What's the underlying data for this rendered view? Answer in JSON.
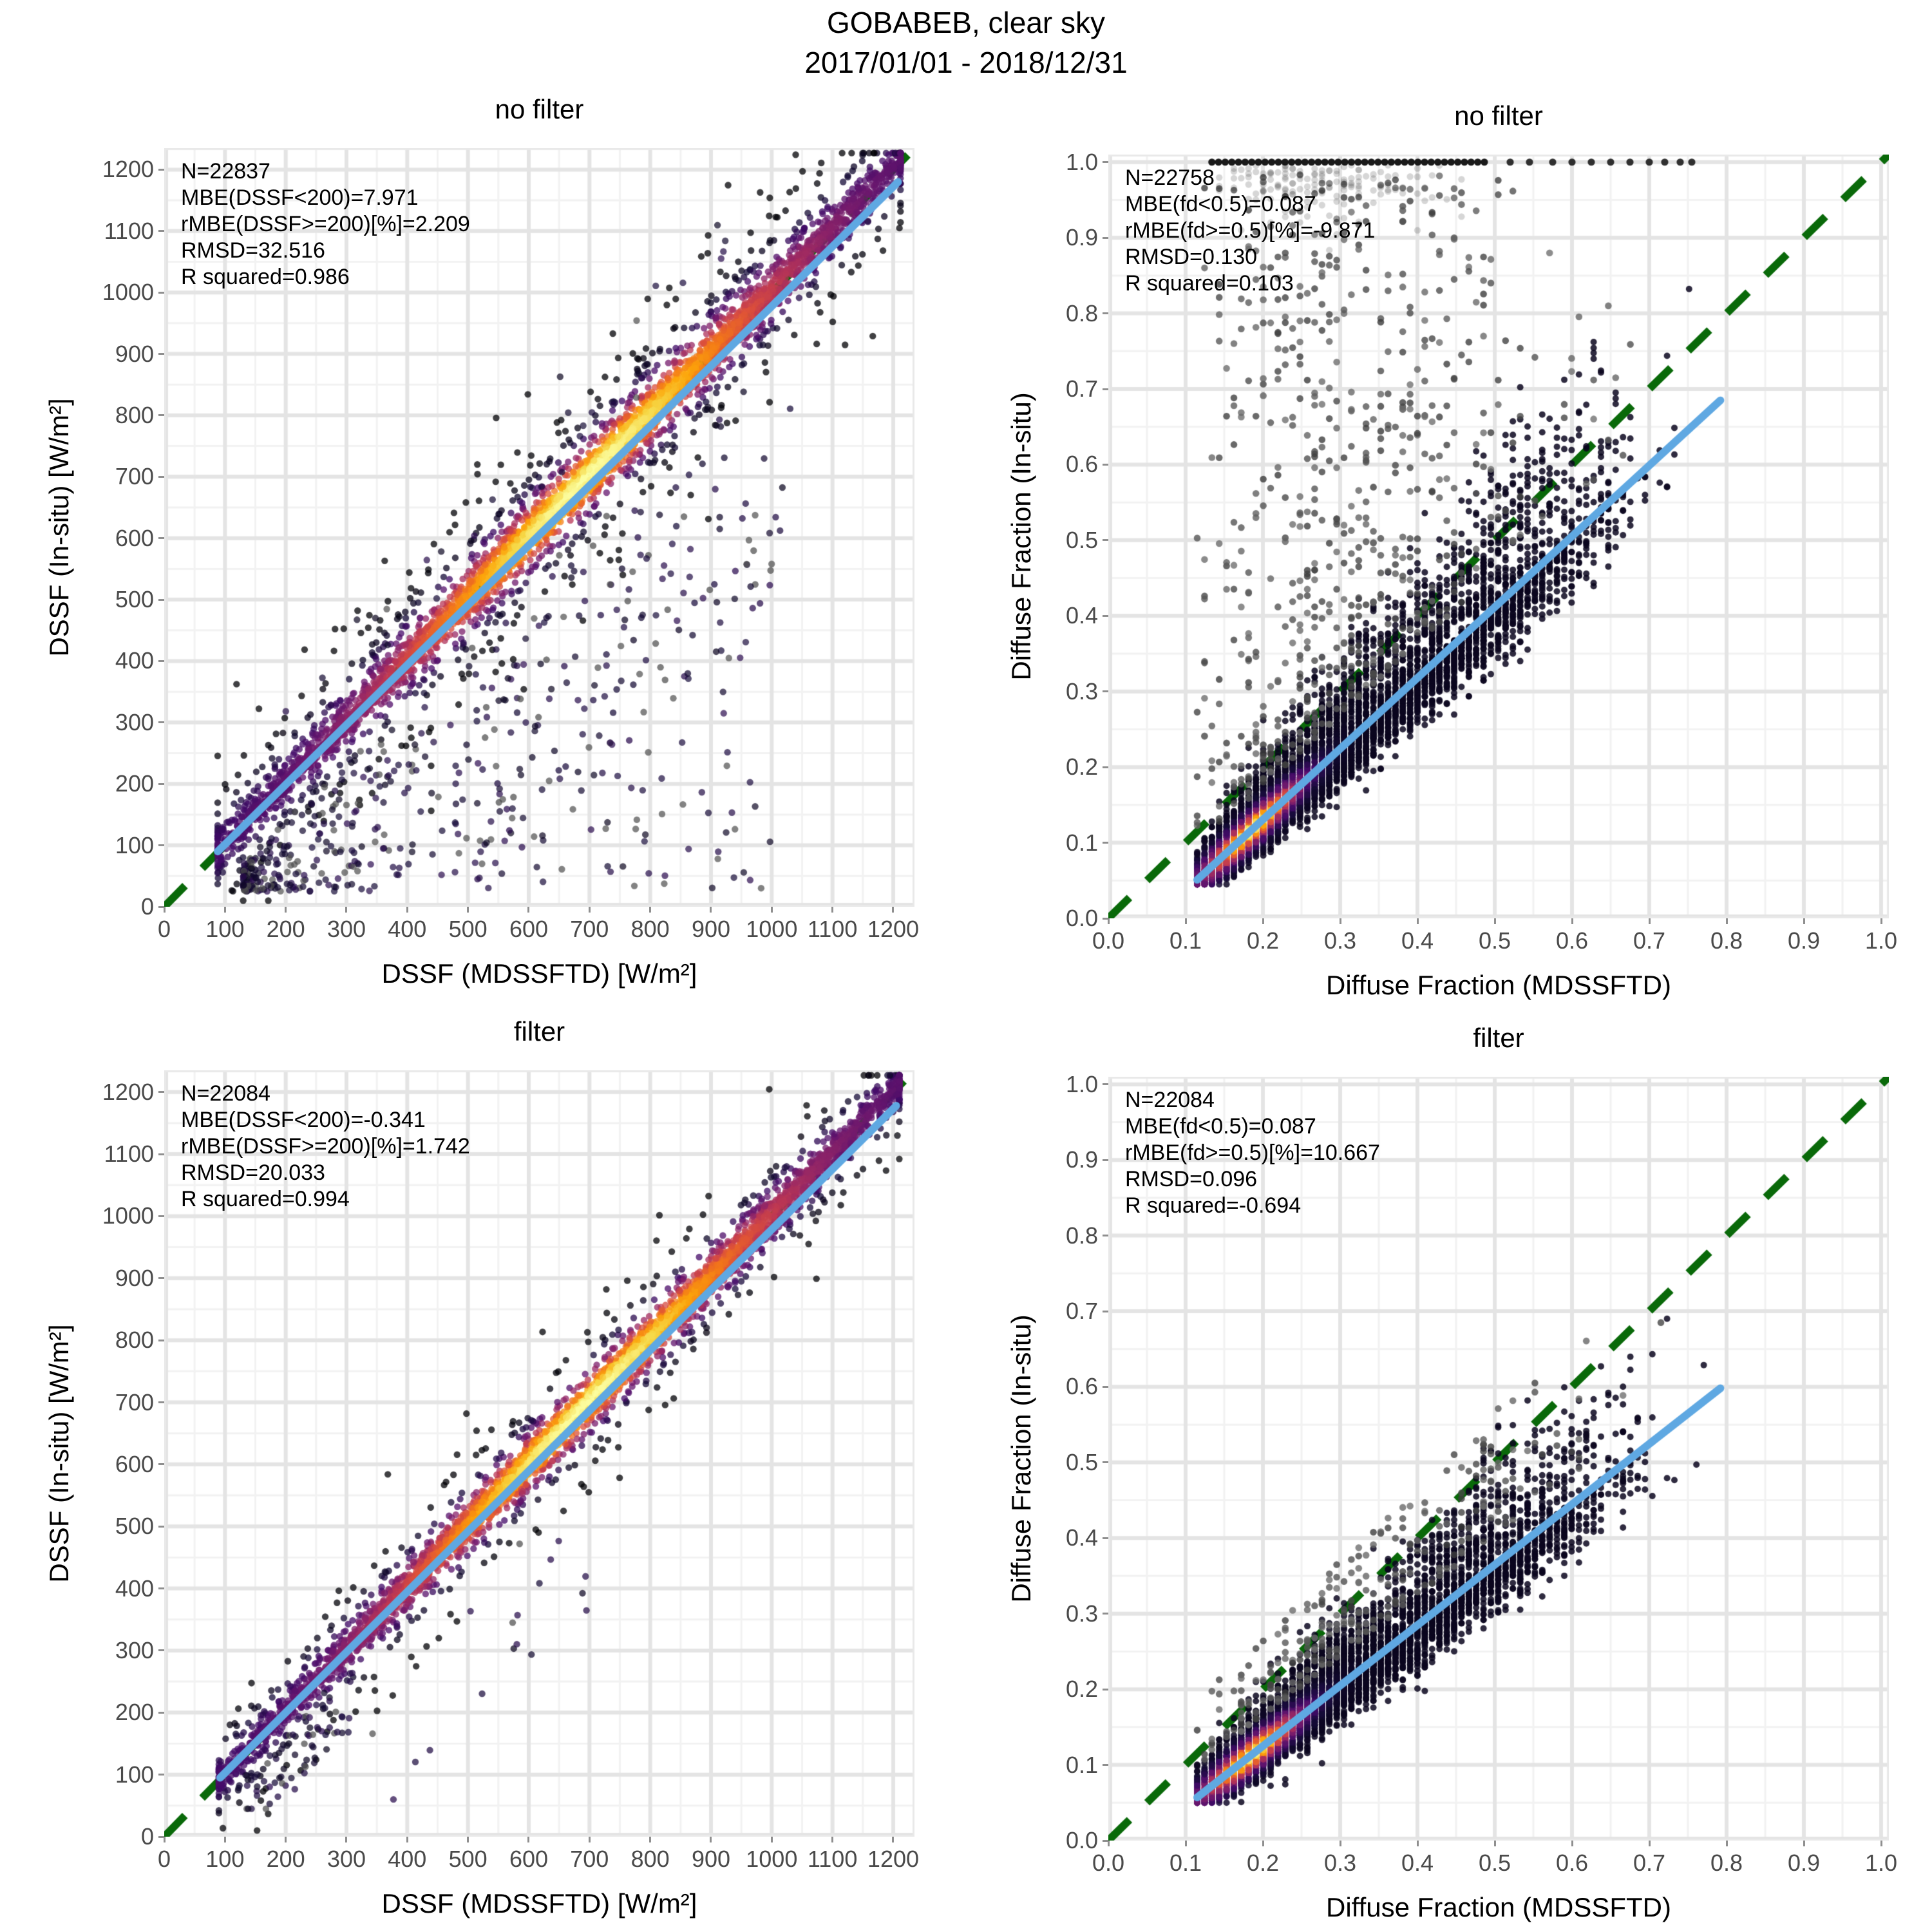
{
  "figure": {
    "title": "GOBABEB, clear sky",
    "subtitle": "2017/01/01 - 2018/12/31",
    "colors": {
      "identity_green": "#096909",
      "regression_blue": "#5fa8e2",
      "grid_major": "#e4e4e4",
      "grid_minor": "#f2f2f2",
      "panel_border": "#e9e9e9",
      "tick_label": "#4a4a4a",
      "tick_mark": "#8f8f8f",
      "outlier_gray": "#4e4e4e",
      "inferno": [
        "#000004",
        "#160b39",
        "#420a68",
        "#6a176e",
        "#932667",
        "#bc3754",
        "#dd513a",
        "#f37819",
        "#fca50a",
        "#f6d746",
        "#fcffa4"
      ]
    }
  },
  "chart_data": [
    {
      "id": "tl",
      "position": "top-left",
      "type": "scatter-density",
      "title": "no filter",
      "xlabel": "DSSF (MDSSFTD) [W/m²]",
      "ylabel": "DSSF (In-situ) [W/m²]",
      "xlim": [
        0,
        1235
      ],
      "ylim": [
        0,
        1235
      ],
      "xticks": [
        0,
        100,
        200,
        300,
        400,
        500,
        600,
        700,
        800,
        900,
        1000,
        1100,
        1200
      ],
      "yticks": [
        0,
        100,
        200,
        300,
        400,
        500,
        600,
        700,
        800,
        900,
        1000,
        1100,
        1200
      ],
      "xtick_labels": [
        "0",
        "100",
        "200",
        "300",
        "400",
        "500",
        "600",
        "700",
        "800",
        "900",
        "1000",
        "1100",
        "1200"
      ],
      "ytick_labels": [
        "0",
        "100",
        "200",
        "300",
        "400",
        "500",
        "600",
        "700",
        "800",
        "900",
        "1000",
        "1100",
        "1200"
      ],
      "minor_step": 50,
      "stats_lines": [
        "N=22837",
        "MBE(DSSF<200)=7.971",
        "rMBE(DSSF>=200)[%]=2.209",
        "RMSD=32.516",
        "R squared=0.986"
      ],
      "identity_line": {
        "x1": 0,
        "y1": 0,
        "x2": 1235,
        "y2": 1235,
        "dashed": true
      },
      "regression_line": {
        "x1": 88,
        "y1": 90,
        "x2": 1208,
        "y2": 1180
      },
      "density_cloud": {
        "kind": "diagonal",
        "n": 4300,
        "t_min": 88,
        "t_max": 1212,
        "t_peak": 690,
        "t_peak_sd": 270,
        "spread_sigmas": [
          15,
          40,
          95
        ],
        "spread_weights": [
          0.6,
          0.28,
          0.12
        ],
        "color_sigma": 52,
        "color_base": 0.2,
        "color_sd": 330,
        "bias": 4,
        "alpha": 0.75,
        "radius": 5.2,
        "seed": 11
      },
      "outlier_clusters": [
        {
          "kind": "below-triangle",
          "n": 430,
          "x_min": 130,
          "x_span": 870,
          "y_min": 25,
          "alpha": 0.7,
          "radius": 5.2,
          "seed": 12
        },
        {
          "kind": "below-band",
          "n": 110,
          "x_min": 480,
          "x_span": 560,
          "gap_min": 70,
          "gap_span": 430,
          "alpha": 0.72,
          "radius": 5.2,
          "seed": 13
        },
        {
          "kind": "above-band",
          "n": 26,
          "x_min": 200,
          "x_span": 760,
          "gap_min": 50,
          "gap_span": 170,
          "alpha": 0.7,
          "radius": 5.2,
          "seed": 14
        }
      ]
    },
    {
      "id": "tr",
      "position": "top-right",
      "type": "scatter-density",
      "title": "no filter",
      "xlabel": "Diffuse Fraction (MDSSFTD)",
      "ylabel": "Diffuse Fraction (In-situ)",
      "xlim": [
        0,
        1.01
      ],
      "ylim": [
        0,
        1.01
      ],
      "xticks": [
        0,
        0.1,
        0.2,
        0.3,
        0.4,
        0.5,
        0.6,
        0.7,
        0.8,
        0.9,
        1.0
      ],
      "yticks": [
        0,
        0.1,
        0.2,
        0.3,
        0.4,
        0.5,
        0.6,
        0.7,
        0.8,
        0.9,
        1.0
      ],
      "xtick_labels": [
        "0.0",
        "0.1",
        "0.2",
        "0.3",
        "0.4",
        "0.5",
        "0.6",
        "0.7",
        "0.8",
        "0.9",
        "1.0"
      ],
      "ytick_labels": [
        "0.0",
        "0.1",
        "0.2",
        "0.3",
        "0.4",
        "0.5",
        "0.6",
        "0.7",
        "0.8",
        "0.9",
        "1.0"
      ],
      "minor_step": 0.05,
      "stats_lines": [
        "N=22758",
        "MBE(fd<0.5)=0.087",
        "rMBE(fd>=0.5)[%]=-9.871",
        "RMSD=0.130",
        "R squared=0.103"
      ],
      "identity_line": {
        "x1": 0,
        "y1": 0,
        "x2": 1.01,
        "y2": 1.01,
        "dashed": true
      },
      "regression_line": {
        "x1": 0.115,
        "y1": 0.051,
        "x2": 0.792,
        "y2": 0.685
      },
      "density_cloud": {
        "kind": "columns",
        "n": 5400,
        "x_start": 0.115,
        "x_step": 0.0095,
        "n_cols": 70,
        "col_peak": 0.205,
        "col_sd": 0.115,
        "col_peak2": 0.44,
        "col_sd2": 0.15,
        "col_amp2": 0.38,
        "col_cut": 0.64,
        "col_cut_sd": 0.09,
        "reg": {
          "a": -0.0567,
          "b": 0.937
        },
        "p_below": 0.56,
        "sigma_below": [
          0.012,
          0.055
        ],
        "sigma_above": [
          0.02,
          0.165
        ],
        "core_x": 0.185,
        "core_xs": 0.062,
        "core_ys": 0.02,
        "y_min": 0.045,
        "y_max": 0.975,
        "alpha": 0.85,
        "radius": 5.0,
        "seed": 21
      },
      "upper_scatter": {
        "n": 640,
        "x_mu": 0.34,
        "x_sd": 0.16,
        "y_offset": 0.045,
        "y_top": 0.985,
        "exp": 1.55,
        "radius": 5.3,
        "seed": 22
      },
      "top_row": {
        "y": 1.0,
        "x_start": 0.134,
        "x_step": 0.0086,
        "n": 42,
        "sparse_x": [
          0.52,
          0.545,
          0.575,
          0.6,
          0.625,
          0.65,
          0.675,
          0.7,
          0.72,
          0.74,
          0.755
        ],
        "radius": 5.6,
        "seed": 23
      },
      "top_cloud": {
        "n": 150,
        "x_mu": 0.265,
        "x_sd": 0.075,
        "x_min": 0.14,
        "x_max": 0.46,
        "depth": 0.04,
        "y_min": 0.87,
        "alpha": 0.16,
        "radius": 5.2,
        "seed": 24
      }
    },
    {
      "id": "bl",
      "position": "bottom-left",
      "type": "scatter-density",
      "title": "filter",
      "xlabel": "DSSF (MDSSFTD) [W/m²]",
      "ylabel": "DSSF (In-situ) [W/m²]",
      "xlim": [
        0,
        1235
      ],
      "ylim": [
        0,
        1235
      ],
      "xticks": [
        0,
        100,
        200,
        300,
        400,
        500,
        600,
        700,
        800,
        900,
        1000,
        1100,
        1200
      ],
      "yticks": [
        0,
        100,
        200,
        300,
        400,
        500,
        600,
        700,
        800,
        900,
        1000,
        1100,
        1200
      ],
      "xtick_labels": [
        "0",
        "100",
        "200",
        "300",
        "400",
        "500",
        "600",
        "700",
        "800",
        "900",
        "1000",
        "1100",
        "1200"
      ],
      "ytick_labels": [
        "0",
        "100",
        "200",
        "300",
        "400",
        "500",
        "600",
        "700",
        "800",
        "900",
        "1000",
        "1100",
        "1200"
      ],
      "minor_step": 50,
      "stats_lines": [
        "N=22084",
        "MBE(DSSF<200)=-0.341",
        "rMBE(DSSF>=200)[%]=1.742",
        "RMSD=20.033",
        "R squared=0.994"
      ],
      "identity_line": {
        "x1": 0,
        "y1": 0,
        "x2": 1235,
        "y2": 1235,
        "dashed": true
      },
      "regression_line": {
        "x1": 92,
        "y1": 95,
        "x2": 1205,
        "y2": 1178
      },
      "density_cloud": {
        "kind": "diagonal",
        "n": 4300,
        "t_min": 90,
        "t_max": 1210,
        "t_peak": 690,
        "t_peak_sd": 270,
        "spread_sigmas": [
          12,
          30,
          68
        ],
        "spread_weights": [
          0.62,
          0.28,
          0.1
        ],
        "color_sigma": 44,
        "color_base": 0.2,
        "color_sd": 330,
        "bias": 3,
        "alpha": 0.75,
        "radius": 5.2,
        "seed": 31
      },
      "outlier_clusters": [
        {
          "kind": "below-band",
          "n": 70,
          "x_min": 130,
          "x_span": 180,
          "gap_min": 30,
          "gap_span": 110,
          "alpha": 0.72,
          "radius": 5.2,
          "seed": 32
        },
        {
          "kind": "below-band",
          "n": 18,
          "x_min": 300,
          "x_span": 500,
          "gap_min": 80,
          "gap_span": 260,
          "alpha": 0.72,
          "radius": 5.2,
          "seed": 33
        }
      ]
    },
    {
      "id": "br",
      "position": "bottom-right",
      "type": "scatter-density",
      "title": "filter",
      "xlabel": "Diffuse Fraction (MDSSFTD)",
      "ylabel": "Diffuse Fraction (In-situ)",
      "xlim": [
        0,
        1.01
      ],
      "ylim": [
        0,
        1.01
      ],
      "xticks": [
        0,
        0.1,
        0.2,
        0.3,
        0.4,
        0.5,
        0.6,
        0.7,
        0.8,
        0.9,
        1.0
      ],
      "yticks": [
        0,
        0.1,
        0.2,
        0.3,
        0.4,
        0.5,
        0.6,
        0.7,
        0.8,
        0.9,
        1.0
      ],
      "xtick_labels": [
        "0.0",
        "0.1",
        "0.2",
        "0.3",
        "0.4",
        "0.5",
        "0.6",
        "0.7",
        "0.8",
        "0.9",
        "1.0"
      ],
      "ytick_labels": [
        "0.0",
        "0.1",
        "0.2",
        "0.3",
        "0.4",
        "0.5",
        "0.6",
        "0.7",
        "0.8",
        "0.9",
        "1.0"
      ],
      "minor_step": 0.05,
      "stats_lines": [
        "N=22084",
        "MBE(fd<0.5)=0.087",
        "rMBE(fd>=0.5)[%]=10.667",
        "RMSD=0.096",
        "R squared=-0.694"
      ],
      "identity_line": {
        "x1": 0,
        "y1": 0,
        "x2": 1.01,
        "y2": 1.01,
        "dashed": true
      },
      "regression_line": {
        "x1": 0.115,
        "y1": 0.057,
        "x2": 0.792,
        "y2": 0.598
      },
      "density_cloud": {
        "kind": "columns",
        "n": 5400,
        "x_start": 0.115,
        "x_step": 0.0095,
        "n_cols": 70,
        "col_peak": 0.205,
        "col_sd": 0.115,
        "col_peak2": 0.44,
        "col_sd2": 0.15,
        "col_amp2": 0.38,
        "col_cut": 0.64,
        "col_cut_sd": 0.09,
        "reg": {
          "a": -0.0349,
          "b": 0.799
        },
        "p_below": 0.56,
        "sigma_below": [
          0.011,
          0.05
        ],
        "sigma_above": [
          0.018,
          0.105
        ],
        "core_x": 0.185,
        "core_xs": 0.062,
        "core_ys": 0.02,
        "y_min": 0.05,
        "y_max": 0.7,
        "alpha": 0.85,
        "radius": 5.0,
        "seed": 41
      },
      "upper_scatter": {
        "n": 280,
        "x_mu": 0.42,
        "x_sd": 0.17,
        "y_offset": 0.04,
        "y_cap_add": 0.07,
        "y_cap_max": 0.67,
        "exp": 1.7,
        "radius": 5.3,
        "seed": 42
      },
      "extra_points": [
        [
          0.715,
          0.685
        ]
      ]
    }
  ]
}
